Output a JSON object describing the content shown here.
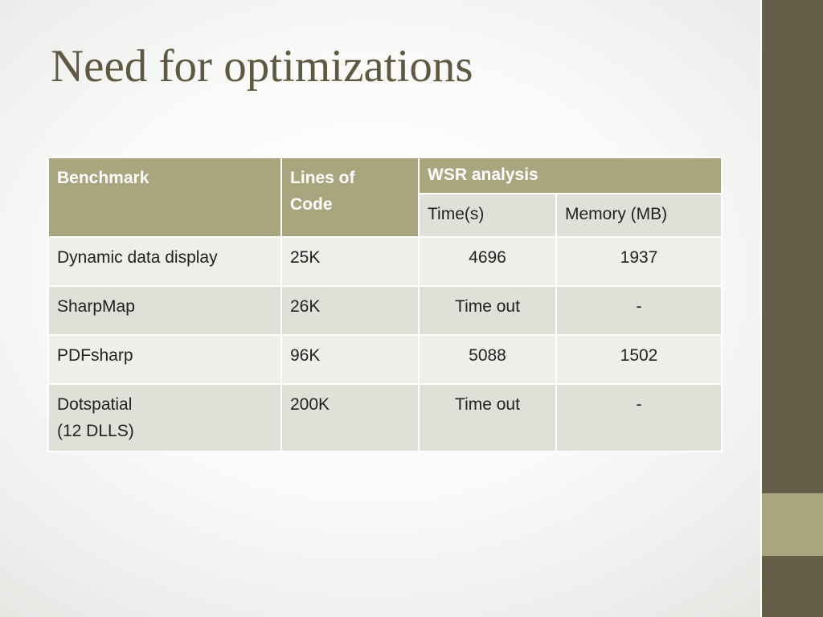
{
  "slide": {
    "title": "Need for optimizations"
  },
  "table": {
    "headers": {
      "benchmark": "Benchmark",
      "lines_of_code": [
        "Lines of",
        "Code"
      ],
      "wsr_analysis": "WSR analysis",
      "time": "Time(s)",
      "memory": "Memory (MB)"
    },
    "rows": [
      {
        "benchmark": [
          "Dynamic data display"
        ],
        "loc": "25K",
        "time": "4696",
        "memory": "1937"
      },
      {
        "benchmark": [
          "SharpMap"
        ],
        "loc": "26K",
        "time": "Time out",
        "memory": "-"
      },
      {
        "benchmark": [
          "PDFsharp"
        ],
        "loc": "96K",
        "time": "5088",
        "memory": "1502"
      },
      {
        "benchmark": [
          "Dotspatial",
          "(12 DLLS)"
        ],
        "loc": "200K",
        "time": "Time out",
        "memory": "-"
      }
    ]
  },
  "colors": {
    "title": "#5f5943",
    "sidebar": "#655f4a",
    "sidebar_accent": "#a9a57e",
    "header_fill": "#a9a57e",
    "row_light": "#efeeea",
    "row_dark": "#e1e0d8"
  }
}
